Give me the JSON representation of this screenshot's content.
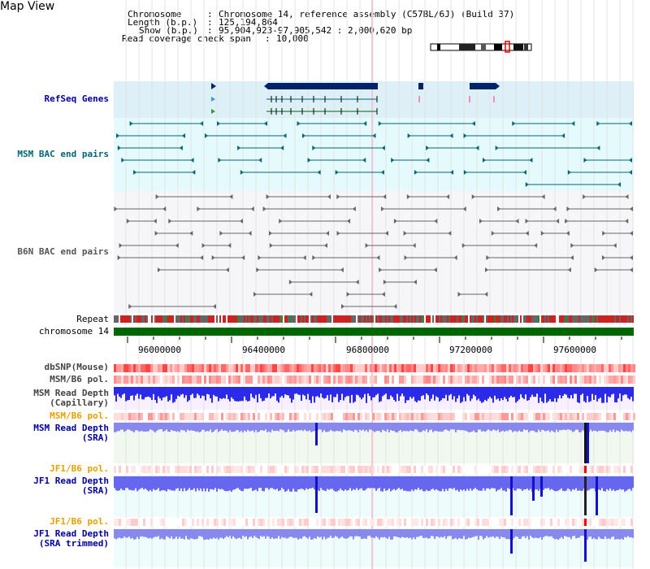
{
  "view_title": "Map View",
  "info": {
    "chromosome_key": "Chromosome",
    "chromosome_val": "Chromosome 14, reference assembly (C57BL/6J) (Build 37)",
    "length_key": "Length (b.p.)",
    "length_val": "125,194,864",
    "show_key": "Show (b.p.)",
    "show_val": "95,904,923-97,905,542 : 2,000,620 bp",
    "coverage_key": "Read coverage check span",
    "coverage_val": "10,000"
  },
  "tracks": {
    "refseq": "RefSeq Genes",
    "msm_bac": "MSM BAC end pairs",
    "b6n_bac": "B6N BAC end pairs",
    "repeat": "Repeat",
    "chromosome": "chromosome 14",
    "dbsnp": "dbSNP(Mouse)",
    "msm_pol": "MSM/B6 pol.",
    "msm_depth_cap_1": "MSM Read Depth",
    "msm_depth_cap_2": "(Capillary)",
    "msm_pol2": "MSM/B6 pol.",
    "msm_depth_sra_1": "MSM Read Depth",
    "msm_depth_sra_2": "(SRA)",
    "jf1_pol": "JF1/B6 pol.",
    "jf1_depth_sra_1": "JF1 Read Depth",
    "jf1_depth_sra_2": "(SRA)",
    "jf1_pol2": "JF1/B6 pol.",
    "jf1_depth_trim_1": "JF1 Read Depth",
    "jf1_depth_trim_2": "(SRA trimmed)"
  },
  "ruler": [
    "96000000",
    "96400000",
    "96800000",
    "97200000",
    "97600000"
  ],
  "colors": {
    "refseq_bg": "#ddf0f8",
    "msm_bg": "#e4fafc",
    "gene": "#002266",
    "msm_line": "#006677",
    "b6n_line": "#555555",
    "chromosome": "#006600",
    "depth_blue": "#2222dd",
    "msm_label": "#006677",
    "refseq_label": "#000099",
    "orange_label": "#e8a000",
    "sra_label": "#000099"
  }
}
